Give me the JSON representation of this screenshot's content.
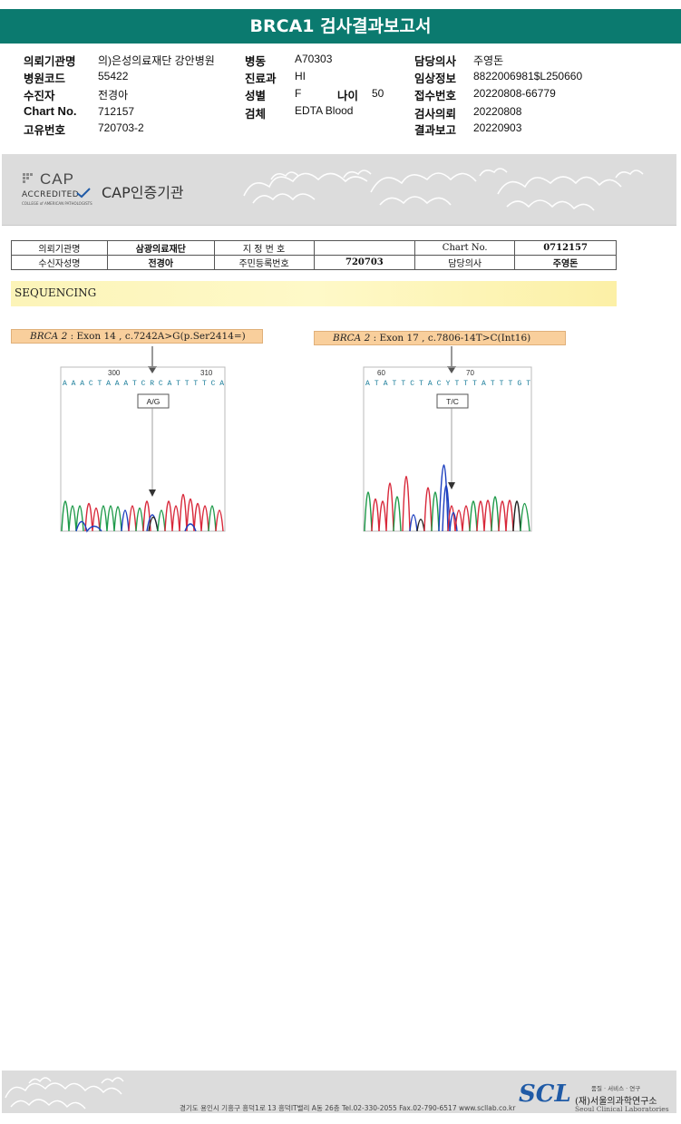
{
  "report": {
    "title": "BRCA1 검사결과보고서"
  },
  "patient_info": {
    "institution_label": "의뢰기관명",
    "institution_value": "의)은성의료재단 강안병원",
    "hospital_code_label": "병원코드",
    "hospital_code_value": "55422",
    "examinee_label": "수진자",
    "examinee_value": "전경아",
    "chart_label": "Chart No.",
    "chart_value": "712157",
    "unique_label": "고유번호",
    "unique_value": "720703-2",
    "ward_label": "병동",
    "ward_value": "A70303",
    "dept_label": "진료과",
    "dept_value": "HI",
    "sex_label": "성별",
    "sex_value": "F",
    "age_label": "나이",
    "age_value": "50",
    "specimen_label": "검체",
    "specimen_value": "EDTA Blood",
    "doctor_label": "담당의사",
    "doctor_value": "주영돈",
    "clinical_label": "임상정보",
    "clinical_value": "8822006981$L250660",
    "receipt_label": "접수번호",
    "receipt_value": "20220808-66779",
    "request_label": "검사의뢰",
    "request_value": "20220808",
    "report_label": "결과보고",
    "report_value": "20220903"
  },
  "cap_banner": {
    "logo_text": "CAP",
    "accredited": "ACCREDITED",
    "college": "COLLEGE of AMERICAN PATHOLOGISTS",
    "title": "CAP인증기관"
  },
  "patient_table": {
    "institution_label": "의뢰기관명",
    "institution_value": "삼광의료재단",
    "designation_label": "지 정 번 호",
    "designation_value": "",
    "chart_label": "Chart No.",
    "chart_value": "0712157",
    "examinee_label": "수신자성명",
    "examinee_value": "전경아",
    "resident_label": "주민등록번호",
    "resident_value": "720703",
    "doctor_label": "담당의사",
    "doctor_value": "주영돈"
  },
  "sequencing": {
    "heading": "SEQUENCING",
    "variants": [
      {
        "gene": "BRCA 2",
        "detail": " : Exon 14 , c.7242A>G(p.Ser2414=)",
        "pos_start": "300",
        "pos_end": "310",
        "bases": "AAACTAAATCRCATTTTCA",
        "call": "A/G"
      },
      {
        "gene": "BRCA 2",
        "detail": " : Exon 17 , c.7806-14T>C(Int16)",
        "pos_start": "60",
        "pos_end": "70",
        "bases": "ATATTCTACYTTTATTTGT",
        "call": "T/C"
      }
    ]
  },
  "footer": {
    "address": "경기도 용인시 기흥구 흥덕1로 13 흥덕IT밸리 A동 26층  Tel.02-330-2055  Fax.02-790-6517  www.scllab.co.kr",
    "logo": "SCL",
    "tagline": "품질 · 서비스 · 연구",
    "name_kr": "(재)서울의과학연구소",
    "name_en": "Seoul Clinical Laboratories"
  },
  "colors": {
    "header": "#0b7a6f",
    "variant_bg": "#f9cf9c",
    "seq_bar": "#fcf4b8",
    "trace_a": "#1f9a4a",
    "trace_c": "#1c3fbf",
    "trace_g": "#222222",
    "trace_t": "#d8283a"
  }
}
